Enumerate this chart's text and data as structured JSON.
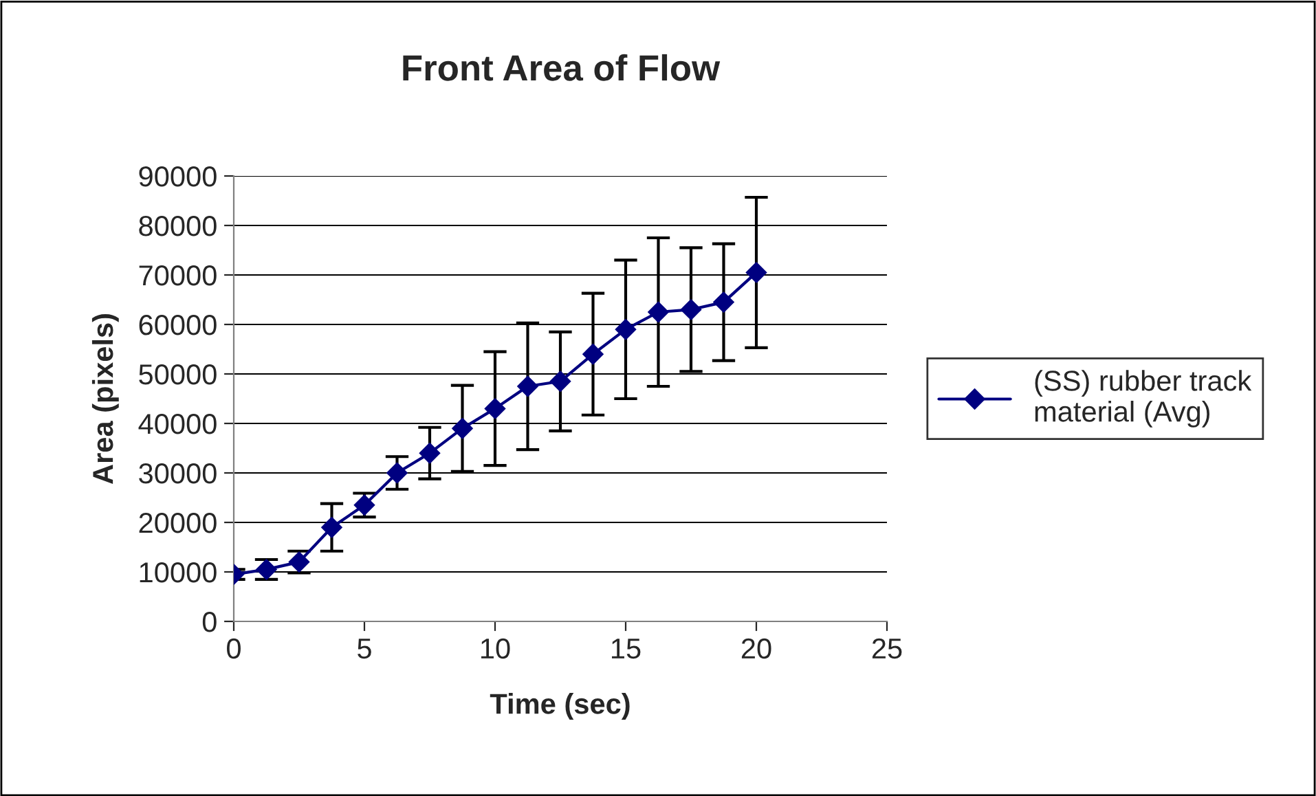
{
  "chart_data": {
    "type": "line",
    "title": "Front Area of Flow",
    "xlabel": "Time (sec)",
    "ylabel": "Area (pixels)",
    "x": [
      0,
      1.25,
      2.5,
      3.75,
      5,
      6.25,
      7.5,
      8.75,
      10,
      11.25,
      12.5,
      13.75,
      15,
      16.25,
      17.5,
      18.75,
      20
    ],
    "series": [
      {
        "name": "(SS) rubber track\nmaterial (Avg)",
        "color": "#000080",
        "values": [
          9500,
          10500,
          12000,
          19000,
          23500,
          30000,
          34000,
          39000,
          43000,
          47500,
          48500,
          54000,
          59000,
          62500,
          63000,
          64500,
          70500
        ],
        "errors": [
          1000,
          2000,
          2200,
          4800,
          2400,
          3300,
          5200,
          8700,
          11500,
          12800,
          10000,
          12300,
          14000,
          15000,
          12500,
          11800,
          15200
        ]
      }
    ],
    "xlim": [
      0,
      25
    ],
    "xticks": [
      0,
      5,
      10,
      15,
      20,
      25
    ],
    "ylim": [
      0,
      90000
    ],
    "yticks": [
      0,
      10000,
      20000,
      30000,
      40000,
      50000,
      60000,
      70000,
      80000,
      90000
    ],
    "grid": "y",
    "legend": "right",
    "marker": "diamond",
    "line_style": "solid"
  }
}
